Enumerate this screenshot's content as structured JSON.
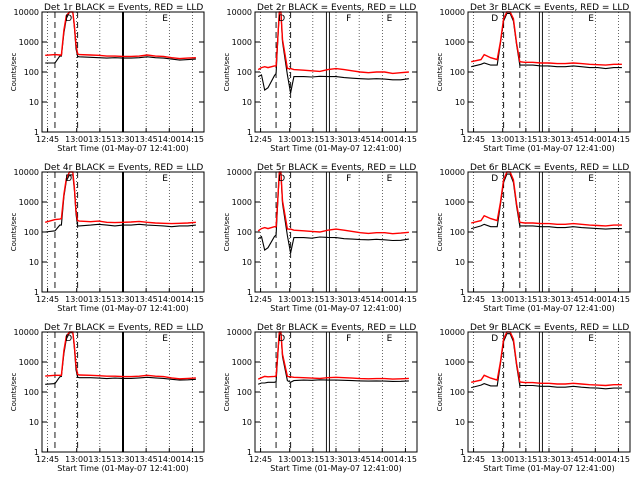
{
  "figure": {
    "background": "#ffffff",
    "events_color": "#000000",
    "lld_color": "#ff0000"
  },
  "chart_data": [
    {
      "type": "line",
      "title": "Det 1r BLACK = Events, RED = LLD",
      "xlabel": "Start Time (01-May-07 12:41:00)",
      "ylabel": "Counts/sec",
      "ylim": [
        1,
        10000
      ],
      "yscale": "log",
      "x_ticks": [
        "12:45",
        "13:00",
        "13:15",
        "13:30",
        "13:45",
        "14:00",
        "14:15"
      ],
      "y_ticks": [
        "1",
        "10",
        "100",
        "1000",
        "10000"
      ],
      "markers": [
        {
          "t": 13.13,
          "label": "D"
        },
        {
          "t": 73,
          "label": "E"
        }
      ],
      "vlines_dashed": [
        8,
        22
      ],
      "vlines_solid": [
        50
      ],
      "vlines_double": [],
      "x": [
        2,
        8,
        11,
        12,
        13.5,
        15,
        17,
        19,
        20,
        21,
        22,
        23,
        30,
        35,
        40,
        45,
        50,
        55,
        60,
        65,
        70,
        75,
        80,
        85,
        90,
        95
      ],
      "series": [
        {
          "name": "Events",
          "values": [
            200,
            200,
            340,
            340,
            2000,
            6000,
            10000,
            10000,
            3000,
            600,
            330,
            320,
            310,
            300,
            290,
            300,
            290,
            290,
            300,
            320,
            300,
            290,
            270,
            250,
            260,
            270
          ]
        },
        {
          "name": "LLD",
          "values": [
            360,
            380,
            370,
            370,
            2500,
            7500,
            12000,
            12000,
            3500,
            800,
            400,
            380,
            370,
            360,
            340,
            340,
            330,
            330,
            340,
            370,
            340,
            330,
            300,
            280,
            290,
            300
          ]
        }
      ]
    },
    {
      "type": "line",
      "title": "Det 2r BLACK = Events, RED = LLD",
      "xlabel": "Start Time (01-May-07 12:41:00)",
      "ylabel": "Counts/sec",
      "ylim": [
        1,
        10000
      ],
      "yscale": "log",
      "x_ticks": [
        "12:45",
        "13:00",
        "13:15",
        "13:30",
        "13:45",
        "14:00",
        "14:15"
      ],
      "y_ticks": [
        "1",
        "10",
        "100",
        "1000",
        "10000"
      ],
      "markers": [
        {
          "t": 13.13,
          "label": "D"
        },
        {
          "t": 55,
          "label": "F"
        },
        {
          "t": 80,
          "label": "E"
        }
      ],
      "vlines_dashed": [
        13,
        22
      ],
      "vlines_solid": [],
      "vlines_double": [
        45
      ],
      "x": [
        2,
        4,
        6,
        8,
        12,
        13,
        14,
        15,
        16,
        17,
        20,
        22,
        24,
        30,
        35,
        40,
        45,
        50,
        55,
        60,
        65,
        70,
        75,
        80,
        85,
        90,
        95
      ],
      "series": [
        {
          "name": "Events",
          "values": [
            70,
            80,
            25,
            30,
            75,
            90,
            1000,
            10000,
            10000,
            1000,
            80,
            20,
            70,
            70,
            68,
            72,
            70,
            70,
            65,
            62,
            60,
            58,
            60,
            58,
            55,
            55,
            60
          ]
        },
        {
          "name": "LLD",
          "values": [
            120,
            140,
            150,
            140,
            160,
            160,
            1200,
            12000,
            12000,
            1200,
            130,
            130,
            120,
            115,
            110,
            105,
            120,
            130,
            120,
            110,
            100,
            95,
            100,
            100,
            90,
            95,
            100
          ]
        }
      ]
    },
    {
      "type": "line",
      "title": "Det 3r BLACK = Events, RED = LLD",
      "xlabel": "Start Time (01-May-07 12:41:00)",
      "ylabel": "Counts/sec",
      "ylim": [
        1,
        10000
      ],
      "yscale": "log",
      "x_ticks": [
        "12:45",
        "13:00",
        "13:15",
        "13:30",
        "13:45",
        "14:00",
        "14:15"
      ],
      "y_ticks": [
        "1",
        "10",
        "100",
        "1000",
        "10000"
      ],
      "markers": [
        {
          "t": 13.13,
          "label": "D"
        },
        {
          "t": 73,
          "label": "E"
        }
      ],
      "vlines_dashed": [
        22,
        32
      ],
      "vlines_solid": [],
      "vlines_double": [
        45
      ],
      "x": [
        2,
        8,
        10,
        14,
        18,
        20,
        22,
        24,
        26,
        28,
        30,
        32,
        35,
        40,
        45,
        50,
        55,
        60,
        65,
        70,
        75,
        80,
        85,
        90,
        95
      ],
      "series": [
        {
          "name": "Events",
          "values": [
            150,
            180,
            200,
            170,
            170,
            900,
            5000,
            9000,
            9000,
            5000,
            800,
            170,
            170,
            170,
            160,
            160,
            150,
            150,
            160,
            150,
            140,
            140,
            130,
            140,
            140
          ]
        },
        {
          "name": "LLD",
          "values": [
            220,
            260,
            380,
            300,
            260,
            1000,
            6000,
            11000,
            11000,
            6000,
            900,
            220,
            210,
            210,
            200,
            200,
            190,
            190,
            200,
            190,
            180,
            175,
            170,
            180,
            180
          ]
        }
      ]
    },
    {
      "type": "line",
      "title": "Det 4r BLACK = Events, RED = LLD",
      "xlabel": "Start Time (01-May-07 12:41:00)",
      "ylabel": "Counts/sec",
      "ylim": [
        1,
        10000
      ],
      "yscale": "log",
      "x_ticks": [
        "12:45",
        "13:00",
        "13:15",
        "13:30",
        "13:45",
        "14:00",
        "14:15"
      ],
      "y_ticks": [
        "1",
        "10",
        "100",
        "1000",
        "10000"
      ],
      "markers": [
        {
          "t": 13.13,
          "label": "D"
        },
        {
          "t": 73,
          "label": "E"
        }
      ],
      "vlines_dashed": [
        8,
        22
      ],
      "vlines_solid": [
        50
      ],
      "vlines_double": [],
      "x": [
        2,
        8,
        11,
        12,
        13.5,
        15,
        17,
        19,
        20,
        21,
        22,
        23,
        30,
        35,
        40,
        45,
        50,
        55,
        60,
        65,
        70,
        75,
        80,
        85,
        90,
        95
      ],
      "series": [
        {
          "name": "Events",
          "values": [
            100,
            110,
            170,
            170,
            1500,
            5000,
            8000,
            8000,
            2500,
            400,
            160,
            160,
            170,
            180,
            170,
            160,
            170,
            170,
            180,
            170,
            165,
            160,
            150,
            160,
            160,
            170
          ]
        },
        {
          "name": "LLD",
          "values": [
            210,
            260,
            270,
            280,
            1800,
            6000,
            10000,
            10000,
            3000,
            500,
            240,
            230,
            220,
            230,
            210,
            205,
            210,
            215,
            225,
            210,
            200,
            195,
            190,
            195,
            200,
            210
          ]
        }
      ]
    },
    {
      "type": "line",
      "title": "Det 5r BLACK = Events, RED = LLD",
      "xlabel": "Start Time (01-May-07 12:41:00)",
      "ylabel": "Counts/sec",
      "ylim": [
        1,
        10000
      ],
      "yscale": "log",
      "x_ticks": [
        "12:45",
        "13:00",
        "13:15",
        "13:30",
        "13:45",
        "14:00",
        "14:15"
      ],
      "y_ticks": [
        "1",
        "10",
        "100",
        "1000",
        "10000"
      ],
      "markers": [
        {
          "t": 13.13,
          "label": "D"
        },
        {
          "t": 55,
          "label": "F"
        },
        {
          "t": 80,
          "label": "E"
        }
      ],
      "vlines_dashed": [
        13,
        22
      ],
      "vlines_solid": [],
      "vlines_double": [
        45
      ],
      "x": [
        2,
        4,
        6,
        8,
        12,
        13,
        14,
        15,
        16,
        17,
        20,
        22,
        24,
        30,
        35,
        40,
        45,
        50,
        55,
        60,
        65,
        70,
        75,
        80,
        85,
        90,
        95
      ],
      "series": [
        {
          "name": "Events",
          "values": [
            60,
            70,
            25,
            30,
            70,
            80,
            900,
            9000,
            9000,
            900,
            75,
            20,
            65,
            65,
            62,
            68,
            66,
            65,
            60,
            58,
            56,
            55,
            57,
            55,
            52,
            53,
            58
          ]
        },
        {
          "name": "LLD",
          "values": [
            110,
            130,
            140,
            130,
            150,
            150,
            1100,
            11000,
            11000,
            1100,
            125,
            125,
            115,
            110,
            105,
            100,
            115,
            125,
            115,
            105,
            95,
            90,
            95,
            95,
            88,
            92,
            98
          ]
        }
      ]
    },
    {
      "type": "line",
      "title": "Det 6r BLACK = Events, RED = LLD",
      "xlabel": "Start Time (01-May-07 12:41:00)",
      "ylabel": "Counts/sec",
      "ylim": [
        1,
        10000
      ],
      "yscale": "log",
      "x_ticks": [
        "12:45",
        "13:00",
        "13:15",
        "13:30",
        "13:45",
        "14:00",
        "14:15"
      ],
      "y_ticks": [
        "1",
        "10",
        "100",
        "1000",
        "10000"
      ],
      "markers": [
        {
          "t": 13.13,
          "label": "D"
        },
        {
          "t": 73,
          "label": "E"
        }
      ],
      "vlines_dashed": [
        22,
        32
      ],
      "vlines_solid": [],
      "vlines_double": [
        45
      ],
      "x": [
        2,
        8,
        10,
        14,
        18,
        20,
        22,
        24,
        26,
        28,
        30,
        32,
        35,
        40,
        45,
        50,
        55,
        60,
        65,
        70,
        75,
        80,
        85,
        90,
        95
      ],
      "series": [
        {
          "name": "Events",
          "values": [
            130,
            160,
            180,
            150,
            150,
            800,
            4500,
            8500,
            8500,
            4500,
            700,
            160,
            160,
            160,
            150,
            150,
            140,
            140,
            150,
            140,
            135,
            130,
            125,
            130,
            130
          ]
        },
        {
          "name": "LLD",
          "values": [
            200,
            240,
            350,
            280,
            240,
            950,
            5500,
            10500,
            10500,
            5500,
            850,
            210,
            200,
            200,
            190,
            190,
            180,
            180,
            190,
            180,
            170,
            165,
            160,
            170,
            170
          ]
        }
      ]
    },
    {
      "type": "line",
      "title": "Det 7r BLACK = Events, RED = LLD",
      "xlabel": "Start Time (01-May-07 12:41:00)",
      "ylabel": "Counts/sec",
      "ylim": [
        1,
        10000
      ],
      "yscale": "log",
      "x_ticks": [
        "12:45",
        "13:00",
        "13:15",
        "13:30",
        "13:45",
        "14:00",
        "14:15"
      ],
      "y_ticks": [
        "1",
        "10",
        "100",
        "1000",
        "10000"
      ],
      "markers": [
        {
          "t": 13.13,
          "label": "D"
        },
        {
          "t": 73,
          "label": "E"
        }
      ],
      "vlines_dashed": [
        8,
        22
      ],
      "vlines_solid": [
        50
      ],
      "vlines_double": [],
      "x": [
        2,
        8,
        11,
        12,
        13.5,
        15,
        17,
        19,
        20,
        21,
        22,
        23,
        30,
        35,
        40,
        45,
        50,
        55,
        60,
        65,
        70,
        75,
        80,
        85,
        90,
        95
      ],
      "series": [
        {
          "name": "Events",
          "values": [
            180,
            190,
            320,
            330,
            1900,
            5800,
            9500,
            9500,
            2800,
            550,
            310,
            300,
            300,
            290,
            280,
            290,
            285,
            285,
            295,
            310,
            295,
            285,
            265,
            250,
            255,
            265
          ]
        },
        {
          "name": "LLD",
          "values": [
            340,
            360,
            360,
            360,
            2400,
            7200,
            11500,
            11500,
            3400,
            750,
            390,
            370,
            360,
            350,
            335,
            335,
            325,
            325,
            335,
            360,
            335,
            325,
            295,
            275,
            285,
            295
          ]
        }
      ]
    },
    {
      "type": "line",
      "title": "Det 8r BLACK = Events, RED = LLD",
      "xlabel": "Start Time (01-May-07 12:41:00)",
      "ylabel": "Counts/sec",
      "ylim": [
        1,
        10000
      ],
      "yscale": "log",
      "x_ticks": [
        "12:45",
        "13:00",
        "13:15",
        "13:30",
        "13:45",
        "14:00",
        "14:15"
      ],
      "y_ticks": [
        "1",
        "10",
        "100",
        "1000",
        "10000"
      ],
      "markers": [
        {
          "t": 13.13,
          "label": "D"
        },
        {
          "t": 55,
          "label": "F"
        },
        {
          "t": 80,
          "label": "E"
        }
      ],
      "vlines_dashed": [
        13,
        22
      ],
      "vlines_solid": [],
      "vlines_double": [
        45
      ],
      "x": [
        2,
        4,
        6,
        8,
        12,
        13,
        14,
        15,
        16,
        17,
        20,
        22,
        24,
        30,
        35,
        40,
        45,
        50,
        55,
        60,
        65,
        70,
        75,
        80,
        85,
        90,
        95
      ],
      "series": [
        {
          "name": "Events",
          "values": [
            180,
            200,
            200,
            210,
            210,
            220,
            1500,
            9000,
            9000,
            1500,
            240,
            210,
            240,
            250,
            245,
            255,
            250,
            250,
            245,
            240,
            235,
            230,
            235,
            230,
            225,
            228,
            235
          ]
        },
        {
          "name": "LLD",
          "values": [
            270,
            300,
            330,
            320,
            330,
            340,
            1800,
            11000,
            11000,
            1800,
            330,
            320,
            310,
            300,
            290,
            285,
            300,
            310,
            300,
            290,
            280,
            275,
            280,
            280,
            270,
            275,
            285
          ]
        }
      ]
    },
    {
      "type": "line",
      "title": "Det 9r BLACK = Events, RED = LLD",
      "xlabel": "Start Time (01-May-07 12:41:00)",
      "ylabel": "Counts/sec",
      "ylim": [
        1,
        10000
      ],
      "yscale": "log",
      "x_ticks": [
        "12:45",
        "13:00",
        "13:15",
        "13:30",
        "13:45",
        "14:00",
        "14:15"
      ],
      "y_ticks": [
        "1",
        "10",
        "100",
        "1000",
        "10000"
      ],
      "markers": [
        {
          "t": 13.13,
          "label": "D"
        },
        {
          "t": 73,
          "label": "E"
        }
      ],
      "vlines_dashed": [
        22,
        32
      ],
      "vlines_solid": [],
      "vlines_double": [
        45
      ],
      "x": [
        2,
        8,
        10,
        14,
        18,
        20,
        22,
        24,
        26,
        28,
        30,
        32,
        35,
        40,
        45,
        50,
        55,
        60,
        65,
        70,
        75,
        80,
        85,
        90,
        95
      ],
      "series": [
        {
          "name": "Events",
          "values": [
            140,
            170,
            190,
            160,
            160,
            850,
            4800,
            8800,
            8800,
            4800,
            750,
            165,
            165,
            165,
            155,
            155,
            145,
            145,
            155,
            145,
            138,
            135,
            128,
            135,
            135
          ]
        },
        {
          "name": "LLD",
          "values": [
            210,
            250,
            360,
            290,
            250,
            980,
            5800,
            10800,
            10800,
            5800,
            880,
            215,
            205,
            205,
            195,
            195,
            185,
            185,
            195,
            185,
            175,
            170,
            165,
            175,
            175
          ]
        }
      ]
    }
  ]
}
